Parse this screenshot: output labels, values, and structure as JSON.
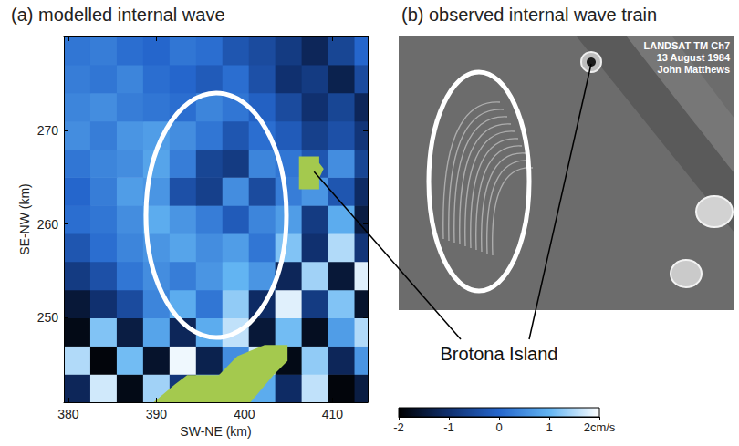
{
  "chart_data": {
    "type": "heatmap",
    "title": "(a) modelled internal wave",
    "x_label": "SW-NE (km)",
    "y_label": "SE-NW (km)",
    "xlim": [
      379.5,
      414
    ],
    "xticks": [
      380,
      390,
      400,
      410
    ],
    "ylim": [
      241,
      280
    ],
    "yticks": [
      250,
      260,
      270
    ],
    "grid": false,
    "cells": {
      "x": [
        381,
        384,
        387,
        390,
        393,
        396,
        399,
        402,
        405,
        408,
        411,
        414
      ],
      "y": [
        242.5,
        245.5,
        248.5,
        251.5,
        254.5,
        257.5,
        260.5,
        263.5,
        266.5,
        269.5,
        272.5,
        275.5,
        278.5
      ],
      "values": [
        [
          -1.2,
          1.7,
          -1.8,
          1.4,
          -0.9,
          1.2,
          -1.5,
          0.9,
          -1.1,
          1.6,
          -1.9,
          -1.4
        ],
        [
          1.5,
          -1.9,
          1.1,
          -1.6,
          1.9,
          -1.3,
          0.5,
          1.7,
          -1.8,
          1.3,
          -1.2,
          0.6
        ],
        [
          -1.8,
          1.2,
          -1.4,
          0.8,
          -1.2,
          0.9,
          1.6,
          -1.5,
          1.1,
          -1.7,
          0.7,
          1.5
        ],
        [
          -1.5,
          -1.0,
          -0.5,
          0.4,
          0.9,
          0.2,
          1.3,
          -1.1,
          1.8,
          -0.8,
          1.2,
          -1.6
        ],
        [
          -0.8,
          -0.4,
          0.2,
          0.5,
          0.3,
          0.6,
          1.0,
          0.6,
          -1.2,
          1.4,
          -1.5,
          1.8
        ],
        [
          -0.3,
          0.1,
          0.4,
          0.6,
          0.8,
          0.5,
          0.7,
          0.2,
          1.2,
          -1.0,
          1.5,
          -0.9
        ],
        [
          0.1,
          0.2,
          0.5,
          0.9,
          0.6,
          0.3,
          -0.2,
          0.4,
          0.7,
          -0.8,
          0.9,
          -1.4
        ],
        [
          0,
          0.3,
          0.7,
          0.6,
          -0.4,
          -0.7,
          0.5,
          -0.5,
          0.3,
          0.6,
          -0.3,
          -1.1
        ],
        [
          0.2,
          0.4,
          0.5,
          0.8,
          0.3,
          -0.6,
          -0.8,
          0.4,
          0.2,
          -0.3,
          0.5,
          -0.6
        ],
        [
          0.5,
          0.3,
          0.6,
          0.7,
          0.5,
          0.2,
          -0.3,
          0.1,
          -0.2,
          -0.7,
          -0.4,
          -0.9
        ],
        [
          0.4,
          0.5,
          0.3,
          0.2,
          0.1,
          0.4,
          0.2,
          -0.1,
          -0.5,
          -1.0,
          -0.6,
          -1.2
        ],
        [
          0.3,
          0.2,
          0.4,
          0.1,
          0,
          -0.2,
          0.1,
          -0.4,
          -1.0,
          -0.8,
          -1.3,
          -0.5
        ],
        [
          0.2,
          0.3,
          0.1,
          0,
          0.2,
          0.1,
          -0.3,
          -0.5,
          -0.8,
          -1.2,
          -0.6,
          0
        ]
      ]
    },
    "colorbar": {
      "range": [
        -2,
        2
      ],
      "ticks": [
        -2,
        -1,
        0,
        1,
        {
          "value": 2,
          "label": "2cm/s"
        }
      ]
    },
    "land": {
      "color": "#a4c94e",
      "polygons": [
        [
          [
            406.2,
            267.2
          ],
          [
            408.5,
            267.2
          ],
          [
            408.5,
            266.5
          ],
          [
            409,
            265.9
          ],
          [
            408.5,
            264.9
          ],
          [
            408.5,
            263.7
          ],
          [
            406.2,
            263.7
          ]
        ],
        [
          [
            389.7,
            241
          ],
          [
            392.1,
            242.9
          ],
          [
            393.5,
            243.9
          ],
          [
            397.1,
            243.9
          ],
          [
            399.2,
            245.9
          ],
          [
            402.3,
            247.1
          ],
          [
            404.9,
            247.1
          ],
          [
            404.9,
            245.4
          ],
          [
            403.3,
            243.9
          ],
          [
            400.7,
            241
          ]
        ]
      ]
    }
  },
  "image_panel": {
    "title": "(b) observed internal wave train",
    "overlay_text": [
      "LANDSAT TM Ch7",
      "13 August 1984",
      "John Matthews"
    ]
  },
  "annotation": "Brotona Island"
}
